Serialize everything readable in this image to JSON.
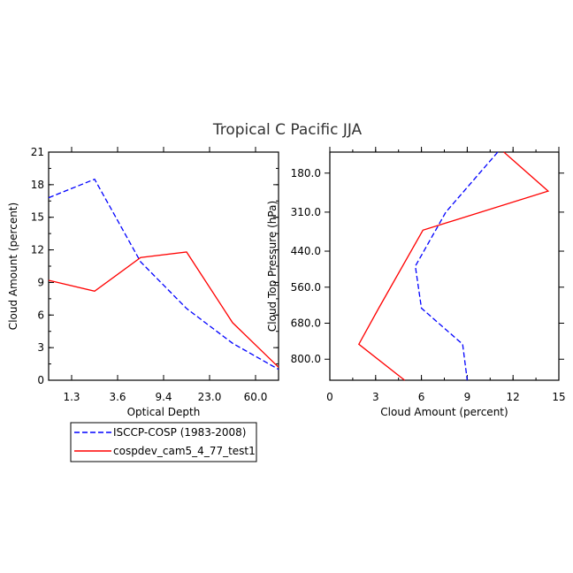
{
  "chart_data": {
    "title": "Tropical C Pacific JJA",
    "legend": [
      {
        "name": "ISCCP-COSP (1983-2008)",
        "color": "#0000ff",
        "style": "dashed"
      },
      {
        "name": "cospdev_cam5_4_77_test1",
        "color": "#ff0000",
        "style": "solid"
      }
    ],
    "left": {
      "type": "line",
      "xlabel": "Optical Depth",
      "ylabel": "Cloud Amount (percent)",
      "ylim": [
        0,
        21
      ],
      "yticks": [
        0,
        3,
        6,
        9,
        12,
        15,
        18,
        21
      ],
      "xticklabels": [
        "1.3",
        "3.6",
        "9.4",
        "23.0",
        "60.0"
      ],
      "xtick_positions": [
        1,
        2,
        3,
        4,
        5
      ],
      "xlim": [
        0.5,
        5.5
      ],
      "series": [
        {
          "name": "ISCCP-COSP (1983-2008)",
          "x": [
            0.5,
            1.5,
            2.5,
            3.5,
            4.5,
            5.5
          ],
          "values": [
            16.8,
            18.5,
            10.9,
            6.6,
            3.4,
            1.0
          ]
        },
        {
          "name": "cospdev_cam5_4_77_test1",
          "x": [
            0.5,
            1.5,
            2.5,
            3.5,
            4.5,
            5.5
          ],
          "values": [
            9.2,
            8.2,
            11.3,
            11.8,
            5.3,
            1.2
          ]
        }
      ]
    },
    "right": {
      "type": "line",
      "xlabel": "Cloud Amount (percent)",
      "ylabel": "Cloud Top Pressure (hPa)",
      "xlim": [
        0,
        15
      ],
      "xticks": [
        0,
        3,
        6,
        9,
        12,
        15
      ],
      "yticklabels": [
        "180.0",
        "310.0",
        "440.0",
        "560.0",
        "680.0",
        "800.0"
      ],
      "ytick_positions": [
        180,
        310,
        440,
        560,
        680,
        800
      ],
      "ylim": [
        870,
        110
      ],
      "series": [
        {
          "name": "ISCCP-COSP (1983-2008)",
          "values": [
            11.0,
            7.6,
            5.6,
            6.0,
            8.7,
            9.0
          ],
          "y": [
            110,
            310,
            490,
            630,
            750,
            870
          ]
        },
        {
          "name": "cospdev_cam5_4_77_test1",
          "values": [
            11.4,
            14.3,
            6.1,
            3.2,
            1.9,
            4.9
          ],
          "y": [
            110,
            240,
            370,
            630,
            750,
            870
          ]
        }
      ]
    }
  }
}
